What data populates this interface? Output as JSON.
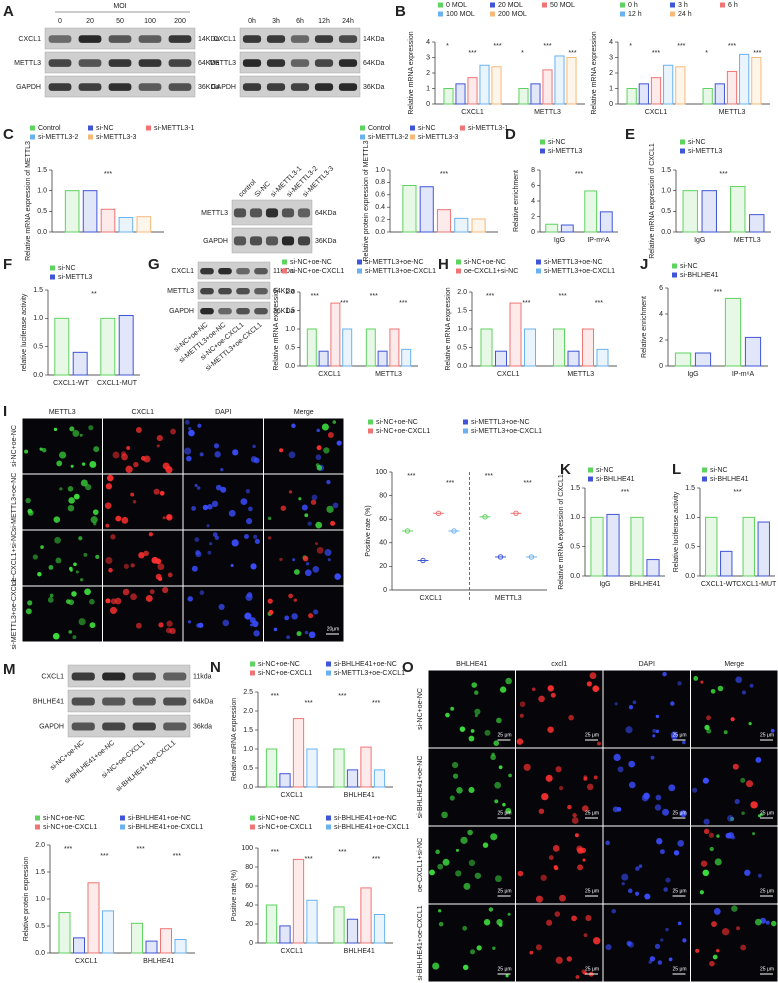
{
  "panel_labels": [
    "A",
    "B",
    "C",
    "D",
    "E",
    "F",
    "G",
    "H",
    "J",
    "I",
    "K",
    "L",
    "M",
    "N",
    "O"
  ],
  "blots": [
    {
      "header": "MOI",
      "columns": [
        "0",
        "20",
        "50",
        "100",
        "200"
      ],
      "rows": [
        {
          "name": "CXCL1",
          "size": "14KDa"
        },
        {
          "name": "METTL3",
          "size": "64KDa"
        },
        {
          "name": "GAPDH",
          "size": "36KDa"
        }
      ]
    },
    {
      "columns": [
        "0h",
        "3h",
        "6h",
        "12h",
        "24h"
      ],
      "rows": [
        {
          "name": "CXCL1",
          "size": "14KDa"
        },
        {
          "name": "METTL3",
          "size": "64KDa"
        },
        {
          "name": "GAPDH",
          "size": "36KDa"
        }
      ]
    },
    {
      "columns": [
        "control",
        "Si-NC",
        "si-METTL3-1",
        "si-METTL3-2",
        "si-METTL3-3"
      ],
      "rows": [
        {
          "name": "METTL3",
          "size": "64KDa"
        },
        {
          "name": "GAPDH",
          "size": "36KDa"
        }
      ]
    },
    {
      "columns": [
        "si-NC+oe-NC",
        "si-METTL3+oe-NC",
        "si-NC+oe-CXCL1",
        "si-METTL3+oe-CXCL1"
      ],
      "rows": [
        {
          "name": "CXCL1",
          "size": "11KDa"
        },
        {
          "name": "METTL3",
          "size": "64KDa"
        },
        {
          "name": "GAPDH",
          "size": "36KDa"
        }
      ]
    },
    {
      "columns": [
        "si-NC+oe-NC",
        "si-BHLHE41+oe-NC",
        "si-NC+oe-CXCL1",
        "si-BHLHE41+oe-CXCL1"
      ],
      "rows": [
        {
          "name": "CXCL1",
          "size": "11kda"
        },
        {
          "name": "BHLHE41",
          "size": "64kDa"
        },
        {
          "name": "GAPDH",
          "size": "36kda"
        }
      ]
    }
  ],
  "micrographs": [
    {
      "channels": [
        "METTL3",
        "CXCL1",
        "DAPI",
        "Merge"
      ],
      "rows": [
        "si-NC+oe-NC",
        "si-METTL3+oe-NC",
        "oe-CXCL1+si-NC",
        "si-METTL3+oe-CXCL1"
      ],
      "scale_label": "20μm"
    },
    {
      "channels": [
        "BHLHE41",
        "cxcl1",
        "DAPI",
        "Merge"
      ],
      "rows": [
        "si-NC+oe-NC",
        "si-BHLHE41+oe-NC",
        "oe-CXCL1+si-NC",
        "si-BHLHE41+oe-CXCL1"
      ],
      "scale_label": "25 μm"
    }
  ],
  "chart_data": [
    {
      "type": "bar",
      "ylabel": "Relative mRNA expression",
      "categories": [
        "CXCL1",
        "METTL3"
      ],
      "ylim": [
        0,
        4
      ],
      "yticks": [
        0,
        1,
        2,
        3,
        4
      ],
      "legend": "top",
      "annotations": [
        "*",
        "***",
        "***",
        "*",
        "***",
        "***"
      ],
      "series": [
        {
          "name": "0 MOL",
          "color": "#5fd35f",
          "values": [
            1.0,
            1.0
          ]
        },
        {
          "name": "20 MOL",
          "color": "#3f55d8",
          "values": [
            1.3,
            1.3
          ]
        },
        {
          "name": "50 MOL",
          "color": "#f07474",
          "values": [
            1.7,
            2.2
          ]
        },
        {
          "name": "100 MOL",
          "color": "#6ab2ef",
          "values": [
            2.5,
            3.1
          ]
        },
        {
          "name": "200 MOL",
          "color": "#f5b97a",
          "values": [
            2.4,
            3.0
          ]
        }
      ]
    },
    {
      "type": "bar",
      "ylabel": "Relative mRNA expression",
      "categories": [
        "CXCL1",
        "METTL3"
      ],
      "ylim": [
        0,
        4
      ],
      "yticks": [
        0,
        1,
        2,
        3,
        4
      ],
      "legend": "top",
      "annotations": [
        "*",
        "***",
        "***",
        "*",
        "***",
        "***"
      ],
      "series": [
        {
          "name": "0 h",
          "color": "#5fd35f",
          "values": [
            1.0,
            1.0
          ]
        },
        {
          "name": "3 h",
          "color": "#3f55d8",
          "values": [
            1.3,
            1.3
          ]
        },
        {
          "name": "6 h",
          "color": "#f07474",
          "values": [
            1.7,
            2.1
          ]
        },
        {
          "name": "12 h",
          "color": "#6ab2ef",
          "values": [
            2.5,
            3.2
          ]
        },
        {
          "name": "24 h",
          "color": "#f5b97a",
          "values": [
            2.4,
            3.0
          ]
        }
      ]
    },
    {
      "type": "bar",
      "ylabel": "Relative mRNA expression of METTL3",
      "categories": [
        null
      ],
      "ylim": [
        0,
        1.5
      ],
      "yticks": [
        {
          "value": 0,
          "label": "0.0"
        },
        0.5,
        {
          "value": 1,
          "label": "1.0"
        },
        1.5
      ],
      "legend": "top",
      "annotations": [
        "***"
      ],
      "series": [
        {
          "name": "Control",
          "color": "#5fd35f",
          "values": [
            1.0
          ]
        },
        {
          "name": "si-NC",
          "color": "#3f55d8",
          "values": [
            1.0
          ]
        },
        {
          "name": "si-METTL3-1",
          "color": "#f07474",
          "values": [
            0.55
          ]
        },
        {
          "name": "si-METTL3-2",
          "color": "#6ab2ef",
          "values": [
            0.35
          ]
        },
        {
          "name": "si-METTL3-3",
          "color": "#f5b97a",
          "values": [
            0.37
          ]
        }
      ]
    },
    {
      "type": "bar",
      "ylabel": "Relative protein expression of METTL3",
      "categories": [
        null
      ],
      "ylim": [
        0,
        1
      ],
      "yticks": [
        {
          "value": 0,
          "label": "0.0"
        },
        0.2,
        0.4,
        0.6,
        0.8,
        {
          "value": 1,
          "label": "1.0"
        }
      ],
      "legend": "top",
      "annotations": [
        "***"
      ],
      "series": [
        {
          "name": "Control",
          "color": "#5fd35f",
          "values": [
            0.75
          ]
        },
        {
          "name": "si-NC",
          "color": "#3f55d8",
          "values": [
            0.73
          ]
        },
        {
          "name": "si-METTL3-1",
          "color": "#f07474",
          "values": [
            0.36
          ]
        },
        {
          "name": "si-METTL3-2",
          "color": "#6ab2ef",
          "values": [
            0.22
          ]
        },
        {
          "name": "si-METTL3-3",
          "color": "#f5b97a",
          "values": [
            0.21
          ]
        }
      ]
    },
    {
      "type": "bar",
      "ylabel": "Relative enrichment",
      "categories": [
        "IgG",
        "IP-m⁶A"
      ],
      "ylim": [
        0,
        8
      ],
      "yticks": [
        0,
        2,
        4,
        6,
        8
      ],
      "legend": "top",
      "annotations": [
        "***"
      ],
      "series": [
        {
          "name": "si-NC",
          "color": "#5fd35f",
          "values": [
            1.0,
            5.3
          ]
        },
        {
          "name": "si-METTL3",
          "color": "#3f55d8",
          "values": [
            0.9,
            2.6
          ]
        }
      ]
    },
    {
      "type": "bar",
      "ylabel": "Relative mRNA expression of CXCL1",
      "categories": [
        "IgG",
        "METTL3"
      ],
      "ylim": [
        0,
        1.5
      ],
      "yticks": [
        {
          "value": 0,
          "label": "0.0"
        },
        0.5,
        {
          "value": 1,
          "label": "1.0"
        },
        1.5
      ],
      "legend": "top",
      "annotations": [
        "***"
      ],
      "series": [
        {
          "name": "si-NC",
          "color": "#5fd35f",
          "values": [
            1.0,
            1.1
          ]
        },
        {
          "name": "si-METTL3",
          "color": "#3f55d8",
          "values": [
            1.0,
            0.42
          ]
        }
      ]
    },
    {
      "type": "bar",
      "ylabel": "relative luciferase activity",
      "categories": [
        "CXCL1-WT",
        "CXCL1-MUT"
      ],
      "ylim": [
        0,
        1.5
      ],
      "yticks": [
        {
          "value": 0,
          "label": "0.0"
        },
        0.5,
        {
          "value": 1,
          "label": "1.0"
        },
        1.5
      ],
      "legend": "top",
      "annotations": [
        "**"
      ],
      "series": [
        {
          "name": "si-NC",
          "color": "#5fd35f",
          "values": [
            1.0,
            1.0
          ]
        },
        {
          "name": "si-METTL3",
          "color": "#3f55d8",
          "values": [
            0.4,
            1.05
          ]
        }
      ]
    },
    {
      "type": "bar",
      "ylabel": "Relative mRNA expression",
      "categories": [
        "CXCL1",
        "METTL3"
      ],
      "ylim": [
        0,
        2
      ],
      "yticks": [
        {
          "value": 0,
          "label": "0.0"
        },
        0.5,
        {
          "value": 1,
          "label": "1.0"
        },
        1.5,
        {
          "value": 2,
          "label": "2.0"
        }
      ],
      "legend": "top",
      "annotations": [
        "***",
        "***",
        "***",
        "***"
      ],
      "series": [
        {
          "name": "si-NC+oe-NC",
          "color": "#5fd35f",
          "values": [
            1.0,
            1.0
          ]
        },
        {
          "name": "si-METTL3+oe-NC",
          "color": "#3f55d8",
          "values": [
            0.4,
            0.4
          ]
        },
        {
          "name": "si-NC+oe-CXCL1",
          "color": "#f07474",
          "values": [
            1.7,
            1.0
          ]
        },
        {
          "name": "si-METTL3+oe-CXCL1",
          "color": "#6ab2ef",
          "values": [
            1.0,
            0.45
          ]
        }
      ]
    },
    {
      "type": "bar",
      "ylabel": "Relative mRNA expression",
      "categories": [
        "CXCL1",
        "METTL3"
      ],
      "ylim": [
        0,
        2
      ],
      "yticks": [
        {
          "value": 0,
          "label": "0.0"
        },
        0.5,
        {
          "value": 1,
          "label": "1.0"
        },
        1.5,
        {
          "value": 2,
          "label": "2.0"
        }
      ],
      "legend": "top",
      "annotations": [
        "***",
        "***",
        "***",
        "***"
      ],
      "series": [
        {
          "name": "si-NC+oe-NC",
          "color": "#5fd35f",
          "values": [
            1.0,
            1.0
          ]
        },
        {
          "name": "si-METTL3+oe-NC",
          "color": "#3f55d8",
          "values": [
            0.4,
            0.4
          ]
        },
        {
          "name": "oe-CXCL1+si-NC",
          "color": "#f07474",
          "values": [
            1.7,
            1.0
          ]
        },
        {
          "name": "si-METTL3+oe-CXCL1",
          "color": "#6ab2ef",
          "values": [
            1.0,
            0.45
          ]
        }
      ]
    },
    {
      "type": "bar",
      "ylabel": "Relative enrichment",
      "categories": [
        "IgG",
        "IP-m⁶A"
      ],
      "ylim": [
        0,
        6
      ],
      "yticks": [
        0,
        2,
        4,
        6
      ],
      "legend": "top",
      "annotations": [
        "***"
      ],
      "series": [
        {
          "name": "si-NC",
          "color": "#5fd35f",
          "values": [
            1.0,
            5.2
          ]
        },
        {
          "name": "si-BHLHE41",
          "color": "#3f55d8",
          "values": [
            1.0,
            2.2
          ]
        }
      ]
    },
    {
      "type": "dot",
      "ylabel": "Positive rate (%)",
      "categories": [
        "CXCL1",
        "METTL3"
      ],
      "ylim": [
        0,
        100
      ],
      "yticks": [
        0,
        20,
        40,
        60,
        80,
        100
      ],
      "legend": "top",
      "annotations": [
        "***",
        "***",
        "***",
        "***"
      ],
      "series": [
        {
          "name": "si-NC+oe-NC",
          "color": "#5fd35f",
          "values": [
            50,
            62
          ]
        },
        {
          "name": "si-METTL3+oe-NC",
          "color": "#3f55d8",
          "values": [
            25,
            28
          ]
        },
        {
          "name": "si-NC+oe-CXCL1",
          "color": "#f07474",
          "values": [
            65,
            65
          ]
        },
        {
          "name": "si-METTL3+oe-CXCL1",
          "color": "#6ab2ef",
          "values": [
            50,
            28
          ]
        }
      ]
    },
    {
      "type": "bar",
      "ylabel": "Relative mRNA expression of CXCL1",
      "categories": [
        "IgG",
        "BHLHE41"
      ],
      "ylim": [
        0,
        1.5
      ],
      "yticks": [
        {
          "value": 0,
          "label": "0.0"
        },
        0.5,
        {
          "value": 1,
          "label": "1.0"
        },
        1.5
      ],
      "legend": "top",
      "annotations": [
        "***"
      ],
      "series": [
        {
          "name": "si-NC",
          "color": "#5fd35f",
          "values": [
            1.0,
            1.0
          ]
        },
        {
          "name": "si-BHLHE41",
          "color": "#3f55d8",
          "values": [
            1.05,
            0.28
          ]
        }
      ]
    },
    {
      "type": "bar",
      "ylabel": "Relative luciferase activity",
      "categories": [
        "CXCL1-WT",
        "CXCL1-MUT"
      ],
      "ylim": [
        0,
        1.5
      ],
      "yticks": [
        {
          "value": 0,
          "label": "0.0"
        },
        0.5,
        {
          "value": 1,
          "label": "1.0"
        },
        1.5
      ],
      "legend": "top",
      "annotations": [
        "***"
      ],
      "series": [
        {
          "name": "si-NC",
          "color": "#5fd35f",
          "values": [
            1.0,
            1.0
          ]
        },
        {
          "name": "si-BHLHE41",
          "color": "#3f55d8",
          "values": [
            0.42,
            0.92
          ]
        }
      ]
    },
    {
      "type": "bar",
      "ylabel": "Relative protein expression",
      "categories": [
        "CXCL1",
        "BHLHE41"
      ],
      "ylim": [
        0,
        2
      ],
      "yticks": [
        {
          "value": 0,
          "label": "0.0"
        },
        0.5,
        {
          "value": 1,
          "label": "1.0"
        },
        1.5,
        {
          "value": 2,
          "label": "2.0"
        }
      ],
      "legend": "top",
      "annotations": [
        "***",
        "***",
        "***",
        "***"
      ],
      "series": [
        {
          "name": "si-NC+oe-NC",
          "color": "#5fd35f",
          "values": [
            0.75,
            0.55
          ]
        },
        {
          "name": "si-BHLHE41+oe-NC",
          "color": "#3f55d8",
          "values": [
            0.28,
            0.22
          ]
        },
        {
          "name": "si-NC+oe-CXCL1",
          "color": "#f07474",
          "values": [
            1.3,
            0.45
          ]
        },
        {
          "name": "si-BHLHE41+oe-CXCL1",
          "color": "#6ab2ef",
          "values": [
            0.78,
            0.25
          ]
        }
      ]
    },
    {
      "type": "bar",
      "ylabel": "Relative mRNA expression",
      "categories": [
        "CXCL1",
        "BHLHE41"
      ],
      "ylim": [
        0,
        2.5
      ],
      "yticks": [
        {
          "value": 0,
          "label": "0.0"
        },
        0.5,
        {
          "value": 1,
          "label": "1.0"
        },
        1.5,
        {
          "value": 2,
          "label": "2.0"
        },
        2.5
      ],
      "legend": "top",
      "annotations": [
        "***",
        "***",
        "***",
        "***"
      ],
      "series": [
        {
          "name": "si-NC+oe-NC",
          "color": "#5fd35f",
          "values": [
            1.0,
            1.0
          ]
        },
        {
          "name": "si-BHLHE41+oe-NC",
          "color": "#3f55d8",
          "values": [
            0.35,
            0.45
          ]
        },
        {
          "name": "si-NC+oe-CXCL1",
          "color": "#f07474",
          "values": [
            1.8,
            1.05
          ]
        },
        {
          "name": "si-METTL3+oe-CXCL1",
          "color": "#6ab2ef",
          "values": [
            1.0,
            0.45
          ]
        }
      ]
    },
    {
      "type": "bar",
      "ylabel": "Positive rate (%)",
      "categories": [
        "CXCL1",
        "BHLHE41"
      ],
      "ylim": [
        0,
        100
      ],
      "yticks": [
        0,
        20,
        40,
        60,
        80,
        100
      ],
      "legend": "top",
      "annotations": [
        "***",
        "***",
        "***",
        "***"
      ],
      "series": [
        {
          "name": "si-NC+oe-NC",
          "color": "#5fd35f",
          "values": [
            40,
            38
          ]
        },
        {
          "name": "si-BHLHE41+oe-NC",
          "color": "#3f55d8",
          "values": [
            18,
            25
          ]
        },
        {
          "name": "si-NC+oe-CXCL1",
          "color": "#f07474",
          "values": [
            88,
            58
          ]
        },
        {
          "name": "si-BHLHE41+oe-CXCL1",
          "color": "#6ab2ef",
          "values": [
            45,
            30
          ]
        }
      ]
    }
  ]
}
